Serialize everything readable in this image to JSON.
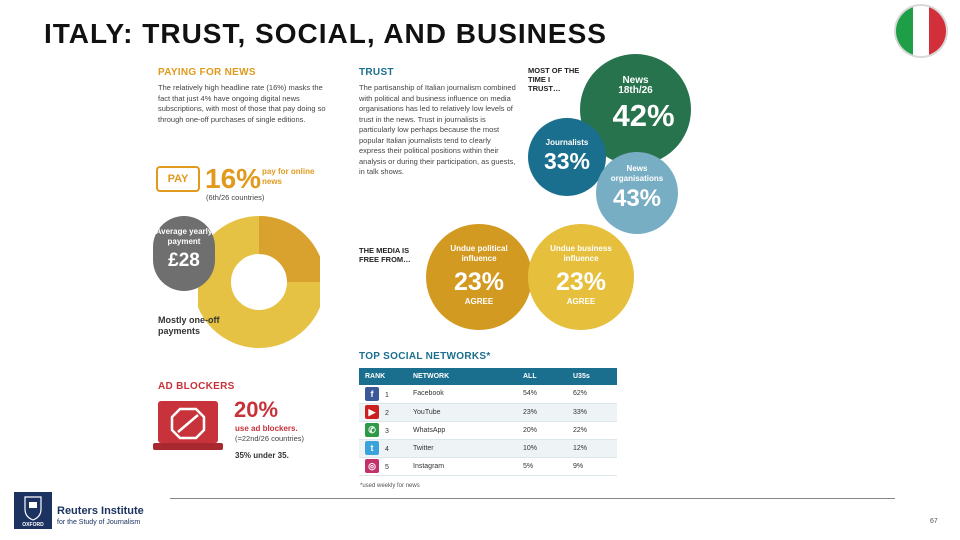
{
  "title": "ITALY: TRUST, SOCIAL, AND BUSINESS",
  "flag_colors": [
    "#1f9e48",
    "#ffffff",
    "#d32f3a"
  ],
  "paying": {
    "heading": "PAYING FOR NEWS",
    "body": "The relatively high headline rate (16%) masks the fact that just 4% have ongoing digital news subscriptions, with most of those that pay doing so through one-off purchases of single editions.",
    "pay_icon": "PAY",
    "pct": "16%",
    "pct_label": "pay for online news",
    "rank": "(6th/26 countries)",
    "avg_label": "Average yearly payment",
    "avg_value": "£28",
    "donut_label": "Mostly one-off payments"
  },
  "adblock": {
    "heading": "AD BLOCKERS",
    "pct": "20%",
    "label": "use ad blockers.",
    "rank": "(=22nd/26 countries)",
    "under35": "35% under 35."
  },
  "trust": {
    "heading": "TRUST",
    "body": "The partisanship of Italian journalism combined with political and business influence on media organisations has led to relatively low levels of trust in the news. Trust in journalists is particularly low perhaps because the most popular Italian journalists tend to clearly express their political positions within their analysis or during their participation, as guests, in talk shows.",
    "most_label": "MOST OF THE TIME I TRUST…",
    "news_label": "News",
    "news_rank": "18th/26",
    "news_pct": "42%",
    "journalists_label": "Journalists",
    "journalists_pct": "33%",
    "orgs_label": "News organisations",
    "orgs_pct": "43%"
  },
  "media_free": {
    "label": "THE MEDIA IS FREE FROM…",
    "political_label": "Undue political influence",
    "political_pct": "23%",
    "business_label": "Undue business influence",
    "business_pct": "23%",
    "agree": "AGREE"
  },
  "social": {
    "heading": "TOP SOCIAL NETWORKS*",
    "columns": [
      "RANK",
      "NETWORK",
      "ALL",
      "U35s"
    ],
    "rows": [
      {
        "icon": "facebook-icon",
        "glyph": "f",
        "color": "#3b5998",
        "rank": "1",
        "network": "Facebook",
        "all": "54%",
        "u35": "62%"
      },
      {
        "icon": "youtube-icon",
        "glyph": "▶",
        "color": "#cc2020",
        "rank": "2",
        "network": "YouTube",
        "all": "23%",
        "u35": "33%"
      },
      {
        "icon": "whatsapp-icon",
        "glyph": "✆",
        "color": "#2e9a47",
        "rank": "3",
        "network": "WhatsApp",
        "all": "20%",
        "u35": "22%"
      },
      {
        "icon": "twitter-icon",
        "glyph": "t",
        "color": "#3aa3dc",
        "rank": "4",
        "network": "Twitter",
        "all": "10%",
        "u35": "12%"
      },
      {
        "icon": "instagram-icon",
        "glyph": "◎",
        "color": "#c2336b",
        "rank": "5",
        "network": "Instagram",
        "all": "5%",
        "u35": "9%"
      }
    ],
    "footnote": "*used weekly for news"
  },
  "footer": {
    "logo_line1": "Reuters Institute",
    "logo_line2": "for the Study of Journalism",
    "crest_text": "OXFORD",
    "page_number": "67"
  }
}
